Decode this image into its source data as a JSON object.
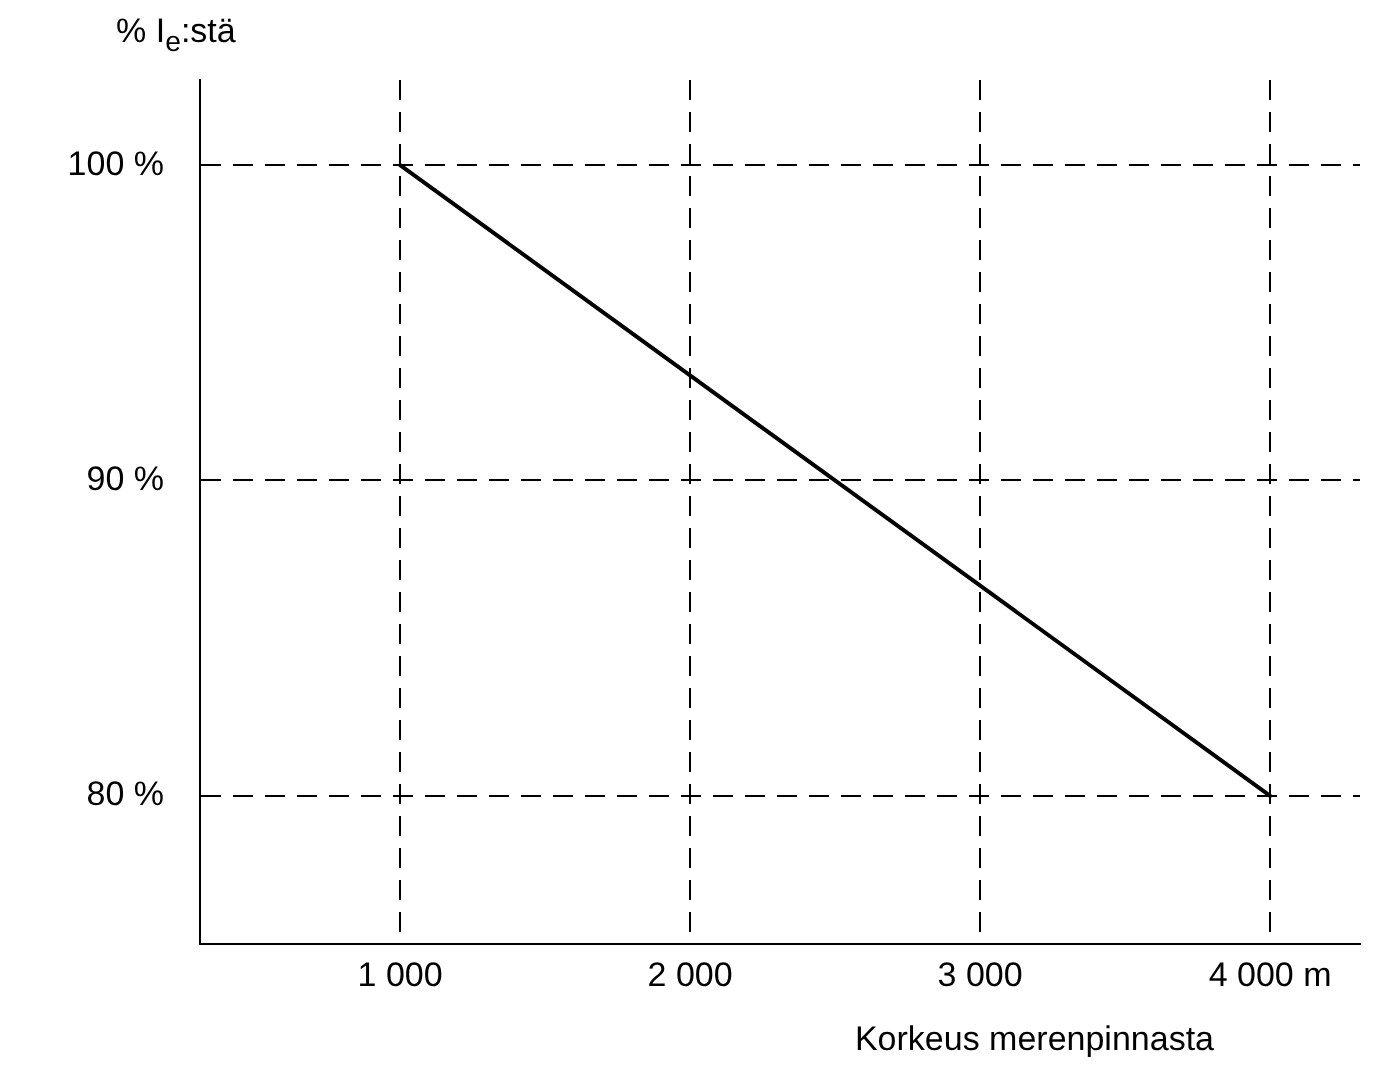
{
  "chart_data": {
    "type": "line",
    "ylabel": "% I$_{e}$:stä",
    "xlabel": "Korkeus merenpinnasta",
    "x": [
      1000,
      4000
    ],
    "series": [
      {
        "color": "#000000",
        "values": [
          100,
          80
        ]
      }
    ],
    "xlim": [
      310,
      4310
    ],
    "ylim": [
      75.3,
      102.7
    ],
    "xticks": [
      {
        "value": 1000,
        "label": "1 000"
      },
      {
        "value": 2000,
        "label": "2 000"
      },
      {
        "value": 3000,
        "label": "3 000"
      },
      {
        "value": 4000,
        "label": "4 000 m"
      }
    ],
    "yticks": [
      {
        "value": 80,
        "label": "80 %"
      },
      {
        "value": 90,
        "label": "90 %"
      },
      {
        "value": 100,
        "label": "100 %"
      }
    ],
    "grid": true,
    "legend": false,
    "marker": "none",
    "line_style": "solid"
  }
}
